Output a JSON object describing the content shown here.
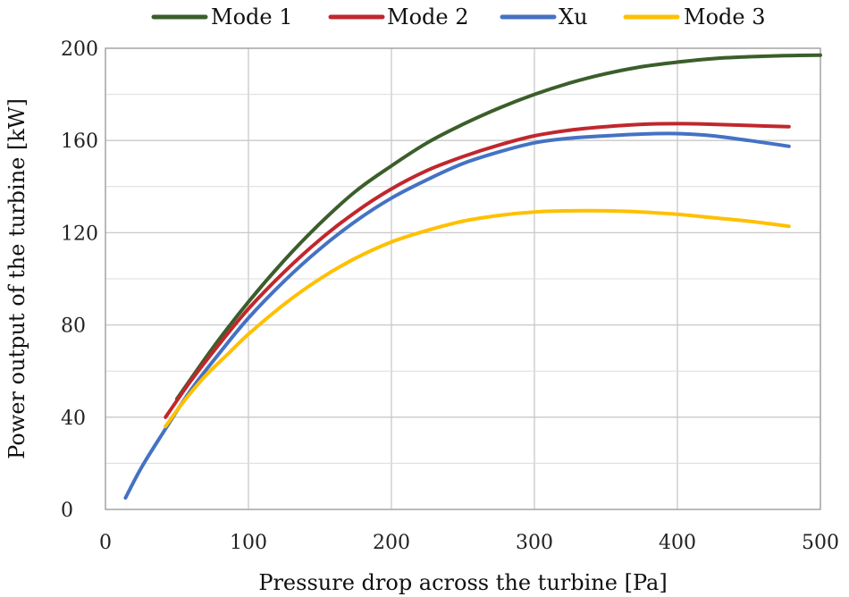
{
  "chart_data": {
    "type": "line",
    "title": "",
    "xlabel": "Pressure drop across the turbine [Pa]",
    "ylabel": "Power output of the turbine [kW]",
    "xlim": [
      0,
      500
    ],
    "ylim": [
      0,
      200
    ],
    "xticks": [
      0,
      100,
      200,
      300,
      400,
      500
    ],
    "yticks": [
      0,
      40,
      80,
      120,
      160,
      200
    ],
    "grid": true,
    "legend_position": "top",
    "series": [
      {
        "name": "Mode 1",
        "color": "#3b5e2b",
        "x": [
          50,
          75,
          100,
          125,
          150,
          175,
          200,
          225,
          250,
          275,
          300,
          325,
          350,
          375,
          400,
          425,
          450,
          475,
          500
        ],
        "y": [
          48,
          70,
          90,
          108,
          124,
          138,
          149,
          159,
          167,
          174,
          180,
          185,
          189,
          192,
          194,
          195.5,
          196.3,
          196.8,
          197
        ]
      },
      {
        "name": "Mode 2",
        "color": "#c0272d",
        "x": [
          42,
          60,
          80,
          100,
          125,
          150,
          175,
          200,
          225,
          250,
          275,
          300,
          325,
          350,
          375,
          400,
          425,
          450,
          478
        ],
        "y": [
          40,
          56,
          72,
          87,
          103,
          117,
          129,
          139,
          147,
          153,
          158,
          162,
          164.5,
          166,
          167,
          167.3,
          167,
          166.5,
          166
        ]
      },
      {
        "name": "Xu",
        "color": "#4472c4",
        "x": [
          14,
          25,
          40,
          60,
          80,
          100,
          125,
          150,
          175,
          200,
          225,
          250,
          275,
          300,
          325,
          350,
          375,
          400,
          425,
          450,
          478
        ],
        "y": [
          5,
          18,
          33,
          52,
          68,
          83,
          99,
          113,
          125,
          135,
          143,
          150,
          155,
          159,
          161,
          162,
          162.8,
          163,
          162,
          160,
          157.5
        ]
      },
      {
        "name": "Mode 3",
        "color": "#ffc000",
        "x": [
          42,
          55,
          70,
          85,
          100,
          125,
          150,
          175,
          200,
          225,
          250,
          275,
          300,
          325,
          350,
          375,
          400,
          425,
          450,
          478
        ],
        "y": [
          36,
          47,
          58,
          67,
          76,
          89,
          100,
          109,
          116,
          121,
          125,
          127.5,
          129,
          129.5,
          129.5,
          129,
          128,
          126.5,
          125,
          122.8
        ]
      }
    ]
  }
}
